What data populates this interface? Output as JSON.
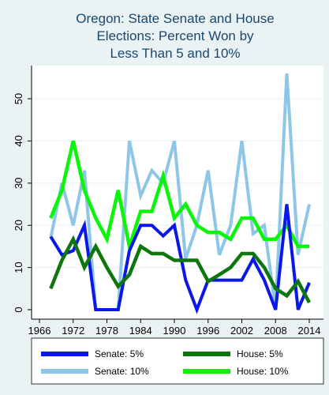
{
  "chart_data": {
    "type": "line",
    "title": [
      "Oregon: State Senate and House",
      "Elections: Percent Won by",
      "Less Than 5 and 10%"
    ],
    "xlabel": "",
    "ylabel": "",
    "xlim": [
      1966,
      2014
    ],
    "ylim": [
      0,
      56
    ],
    "x_ticks": [
      1966,
      1972,
      1978,
      1984,
      1990,
      1996,
      2002,
      2008,
      2014
    ],
    "x_tick_labels": [
      "1966",
      "1972",
      "1978",
      "1984",
      "1990",
      "1996",
      "2002",
      "2008",
      "2014"
    ],
    "y_ticks": [
      0,
      10,
      20,
      30,
      40,
      50
    ],
    "y_tick_labels": [
      "0",
      "10",
      "20",
      "30",
      "40",
      "50"
    ],
    "grid": true,
    "legend_placement": "bottom",
    "x": [
      1968,
      1970,
      1972,
      1974,
      1976,
      1978,
      1980,
      1982,
      1984,
      1986,
      1988,
      1990,
      1992,
      1994,
      1996,
      1998,
      2000,
      2002,
      2004,
      2006,
      2008,
      2010,
      2012,
      2014
    ],
    "series": [
      {
        "name": "Senate: 10%",
        "color": "#8ec6e8",
        "values": [
          17,
          30,
          20,
          33,
          0,
          0,
          0,
          40,
          27,
          33,
          30,
          40,
          12,
          20,
          33,
          13,
          20,
          40,
          18,
          20,
          0,
          56,
          13,
          25
        ]
      },
      {
        "name": "House: 10%",
        "color": "#0bf50b",
        "values": [
          21.7,
          28.3,
          40,
          28.3,
          21.7,
          16.7,
          28.3,
          15,
          23.3,
          23.3,
          31.7,
          21.7,
          25,
          20,
          18.3,
          18.3,
          16.7,
          21.7,
          21.7,
          16.7,
          16.7,
          20,
          15,
          15
        ]
      },
      {
        "name": "Senate: 5%",
        "color": "#0a17e6",
        "values": [
          17.3,
          13,
          14,
          20,
          0,
          0,
          0,
          14,
          20,
          20,
          17.5,
          20,
          7,
          0,
          7,
          7,
          7,
          7,
          12,
          7,
          0,
          25,
          0,
          6.4
        ]
      },
      {
        "name": "House: 5%",
        "color": "#0d770d",
        "values": [
          5,
          11.7,
          16.7,
          10,
          15,
          10,
          5.5,
          8.3,
          15,
          13.3,
          13.3,
          11.7,
          11.7,
          11.7,
          6.7,
          8.3,
          10,
          13.3,
          13.3,
          10,
          5,
          3.3,
          6.7,
          1.7
        ]
      }
    ],
    "legend": [
      {
        "label": "Senate: 5%",
        "color": "#0a17e6"
      },
      {
        "label": "House: 5%",
        "color": "#0d770d"
      },
      {
        "label": "Senate: 10%",
        "color": "#8ec6e8"
      },
      {
        "label": "House: 10%",
        "color": "#0bf50b"
      }
    ]
  }
}
